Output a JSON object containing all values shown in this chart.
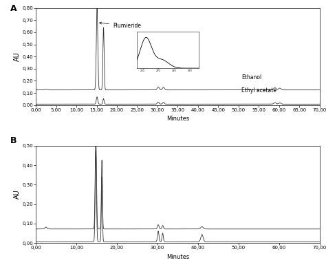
{
  "panel_A": {
    "title": "A",
    "ylabel": "AU",
    "xlabel": "Minutes",
    "xlim": [
      0,
      70
    ],
    "ylim": [
      0.0,
      0.8
    ],
    "yticks": [
      0.0,
      0.1,
      0.2,
      0.3,
      0.4,
      0.5,
      0.6,
      0.7,
      0.8
    ],
    "xticks": [
      0,
      5,
      10,
      15,
      20,
      25,
      30,
      35,
      40,
      45,
      50,
      55,
      60,
      65,
      70
    ],
    "xtick_labels": [
      "0,00",
      "5,00",
      "10,00",
      "15,00",
      "20,00",
      "25,00",
      "30,00",
      "35,00",
      "40,00",
      "45,00",
      "50,00",
      "55,00",
      "60,00",
      "65,00",
      "70,00"
    ],
    "ytick_labels": [
      "0,00",
      "0,10",
      "0,20",
      "0,30",
      "0,40",
      "0,50",
      "0,60",
      "0,70",
      "0,80"
    ],
    "ethanol_baseline": 0.125,
    "ethyl_baseline": 0.008,
    "label_ethanol": "Ethanol",
    "label_ethylacetate": "Ethyl acetate",
    "label_peak": "Plumieride",
    "line_color": "#333333"
  },
  "panel_B": {
    "title": "B",
    "ylabel": "AU",
    "xlabel": "Minutes",
    "xlim": [
      0,
      70
    ],
    "ylim": [
      0.0,
      0.5
    ],
    "yticks": [
      0.0,
      0.1,
      0.2,
      0.3,
      0.4,
      0.5
    ],
    "xticks": [
      0,
      10,
      20,
      30,
      40,
      50,
      60,
      70
    ],
    "xtick_labels": [
      "0,00",
      "10,00",
      "20,00",
      "30,00",
      "40,00",
      "50,00",
      "60,00",
      "70,00"
    ],
    "ytick_labels": [
      "0,00",
      "0,10",
      "0,20",
      "0,30",
      "0,40",
      "0,50"
    ],
    "ethanol_baseline": 0.072,
    "ethyl_baseline": 0.006,
    "line_color": "#333333"
  }
}
